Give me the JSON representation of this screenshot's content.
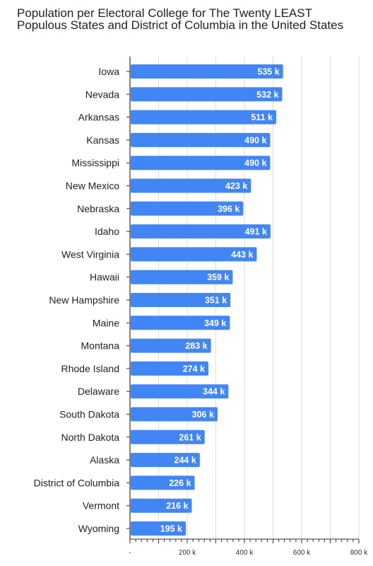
{
  "colors": {
    "bar": "#4285f4",
    "grid": "#dddddd",
    "axis": "#333333"
  },
  "chart_data": {
    "type": "bar",
    "orientation": "horizontal",
    "title": "Population per Electoral College for The Twenty LEAST Populous States and District of Columbia in the United States",
    "xlabel": "",
    "ylabel": "",
    "xlim": [
      0,
      800000
    ],
    "grid": true,
    "categories": [
      "Iowa",
      "Nevada",
      "Arkansas",
      "Kansas",
      "Mississippi",
      "New Mexico",
      "Nebraska",
      "Idaho",
      "West Virginia",
      "Hawaii",
      "New Hampshire",
      "Maine",
      "Montana",
      "Rhode Island",
      "Delaware",
      "South Dakota",
      "North Dakota",
      "Alaska",
      "District of Columbia",
      "Vermont",
      "Wyoming"
    ],
    "values": [
      535000,
      532000,
      511000,
      490000,
      490000,
      423000,
      396000,
      491000,
      443000,
      359000,
      351000,
      349000,
      283000,
      274000,
      344000,
      306000,
      261000,
      244000,
      226000,
      216000,
      195000
    ],
    "value_labels": [
      "535 k",
      "532 k",
      "511 k",
      "490 k",
      "490 k",
      "423 k",
      "396 k",
      "491 k",
      "443 k",
      "359 k",
      "351 k",
      "349 k",
      "283 k",
      "274 k",
      "344 k",
      "306 k",
      "261 k",
      "244 k",
      "226 k",
      "216 k",
      "195 k"
    ],
    "x_ticks": [
      0,
      200000,
      400000,
      600000,
      800000
    ],
    "x_tick_labels": [
      "-",
      "200 k",
      "400 k",
      "600 k",
      "800 k"
    ]
  }
}
